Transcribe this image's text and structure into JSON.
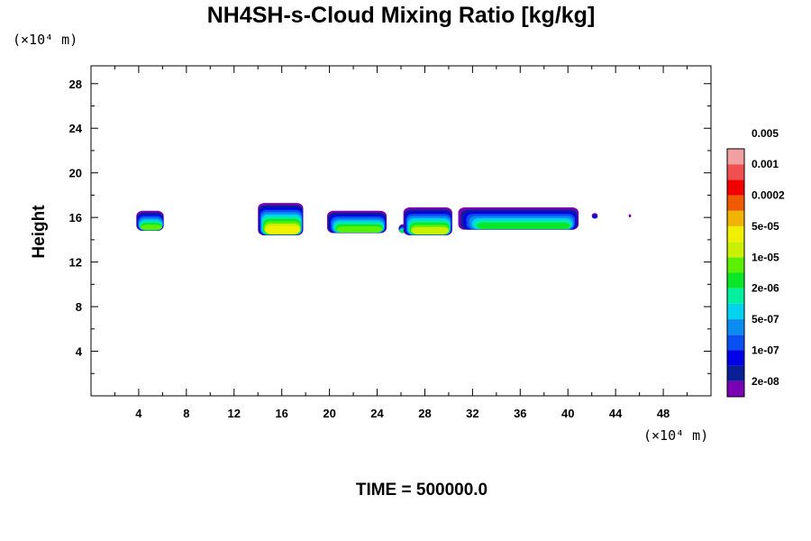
{
  "chart_data": {
    "type": "heatmap",
    "title": "NH4SH-s-Cloud Mixing Ratio [kg/kg]",
    "xlabel": "",
    "ylabel": "Height",
    "x_unit": "(×10⁴ m)",
    "y_unit": "(×10⁴ m)",
    "xlim": [
      0,
      52
    ],
    "ylim": [
      0,
      29.6
    ],
    "x_ticks": [
      4,
      8,
      12,
      16,
      20,
      24,
      28,
      32,
      36,
      40,
      44,
      48
    ],
    "y_ticks": [
      4,
      8,
      12,
      16,
      20,
      24,
      28
    ],
    "grid": false,
    "footer": "TIME = 500000.0",
    "colorbar": {
      "colors": [
        "#7a00b4",
        "#0a1e96",
        "#0000e6",
        "#0a50f0",
        "#0a8cf0",
        "#00d2f0",
        "#00f0a0",
        "#0ae628",
        "#5af000",
        "#c8f000",
        "#f0f000",
        "#f0b400",
        "#f05a00",
        "#f00000",
        "#f05050",
        "#f0a0a0"
      ],
      "labels": [
        "2e-08",
        "1e-07",
        "5e-07",
        "2e-06",
        "1e-05",
        "5e-05",
        "0.0002",
        "0.001",
        "0.005"
      ]
    },
    "clouds": [
      {
        "x0": 3.8,
        "x1": 6.1,
        "base": 14.8,
        "top": 16.6,
        "max_level": 8
      },
      {
        "x0": 14.0,
        "x1": 17.8,
        "base": 14.4,
        "top": 17.3,
        "max_level": 10
      },
      {
        "x0": 19.8,
        "x1": 24.8,
        "base": 14.6,
        "top": 16.6,
        "max_level": 8
      },
      {
        "x0": 25.8,
        "x1": 26.5,
        "base": 14.6,
        "top": 15.4,
        "max_level": 7
      },
      {
        "x0": 26.2,
        "x1": 30.3,
        "base": 14.4,
        "top": 16.9,
        "max_level": 9
      },
      {
        "x0": 30.8,
        "x1": 40.9,
        "base": 14.9,
        "top": 16.9,
        "max_level": 7
      },
      {
        "x0": 42.0,
        "x1": 42.5,
        "base": 15.9,
        "top": 16.4,
        "max_level": 2
      },
      {
        "x0": 45.1,
        "x1": 45.3,
        "base": 16.0,
        "top": 16.3,
        "max_level": 0
      }
    ]
  }
}
